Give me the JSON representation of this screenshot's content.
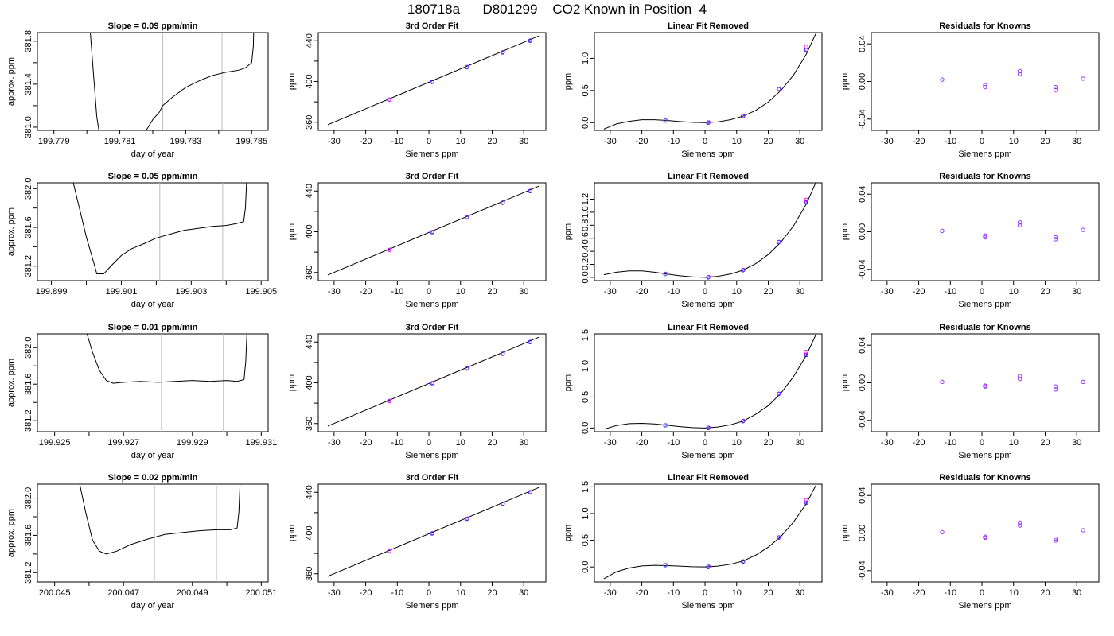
{
  "title_parts": [
    "180718a",
    "D801299",
    "CO2 Known in Position  4"
  ],
  "colors": {
    "curve": "#000000",
    "marker_blue": "#1a1aff",
    "marker_purple": "#9b30ff",
    "marker_magenta": "#ff00ff",
    "marker_cyan": "#1e90ff",
    "gate_lines": "#bebebe"
  },
  "chart_data": [
    {
      "type": "line",
      "panel": "drift-1",
      "title": "Slope =  0.09  ppm/min",
      "xlabel": "day of year",
      "ylabel": "approx. ppm",
      "xlim": [
        199.7785,
        199.7855
      ],
      "ylim": [
        380.97,
        381.88
      ],
      "xticks": [
        "199.779",
        "199.780",
        "199.781",
        "199.782",
        "199.783",
        "199.784",
        "199.785"
      ],
      "xtick_labels_shown": [
        "199.779",
        "199.781",
        "199.783",
        "199.785"
      ],
      "yticks": [
        381.0,
        381.2,
        381.4,
        381.6,
        381.8
      ],
      "ytick_labels_shown": [
        "381.0",
        "381.4",
        "381.8"
      ],
      "gate_lines_x": [
        199.7823,
        199.7841
      ],
      "x": [
        199.78,
        199.7801,
        199.7802,
        199.7803,
        199.7804,
        199.7818,
        199.7819,
        199.782,
        199.7822,
        199.7823,
        199.7826,
        199.783,
        199.7834,
        199.7838,
        199.7842,
        199.7846,
        199.7848,
        199.785,
        199.78505,
        199.7851
      ],
      "y": [
        382.5,
        381.9,
        381.5,
        381.1,
        380.9,
        380.97,
        381.02,
        381.07,
        381.14,
        381.2,
        381.28,
        381.37,
        381.43,
        381.48,
        381.51,
        381.53,
        381.55,
        381.6,
        381.75,
        382.4
      ]
    },
    {
      "type": "scatter",
      "panel": "fit-1",
      "title": "3rd Order Fit",
      "xlabel": "Siemens ppm",
      "ylabel": "ppm",
      "xlim": [
        -35,
        37
      ],
      "ylim": [
        352,
        448
      ],
      "xticks": [
        -30,
        -20,
        -10,
        0,
        10,
        20,
        30
      ],
      "yticks": [
        360,
        380,
        400,
        420,
        440
      ],
      "ytick_labels_shown": [
        "360",
        "400",
        "440"
      ],
      "line": {
        "x": [
          -32,
          35
        ],
        "y": [
          357.5,
          445
        ]
      },
      "points_x": [
        -12.6,
        1.0,
        12.0,
        23.3,
        32.0
      ],
      "points_y": [
        382.0,
        399.6,
        414.0,
        428.5,
        440.0
      ]
    },
    {
      "type": "scatter",
      "panel": "linear-removed-1",
      "title": "Linear Fit Removed",
      "xlabel": "Siemens ppm",
      "ylabel": "ppm",
      "xlim": [
        -35,
        37
      ],
      "ylim": [
        -0.12,
        1.4
      ],
      "xticks": [
        -30,
        -20,
        -10,
        0,
        10,
        20,
        30
      ],
      "yticks": [
        0.0,
        0.5,
        1.0
      ],
      "curve": {
        "x": [
          -32,
          -28,
          -24,
          -20,
          -16,
          -12,
          -8,
          -4,
          0,
          4,
          8,
          12,
          16,
          20,
          24,
          28,
          32,
          35
        ],
        "y": [
          -0.1,
          -0.02,
          0.02,
          0.045,
          0.045,
          0.035,
          0.018,
          0.005,
          0.0,
          0.012,
          0.045,
          0.1,
          0.19,
          0.32,
          0.5,
          0.74,
          1.06,
          1.38
        ]
      },
      "points_x": [
        -12.6,
        1.0,
        12.0,
        23.3,
        32.0
      ],
      "points_y": [
        0.03,
        0.0,
        0.1,
        0.52,
        1.13
      ],
      "extra_points_x": [
        32.0
      ],
      "extra_points_y": [
        1.18
      ]
    },
    {
      "type": "scatter",
      "panel": "residuals-1",
      "title": "Residuals for Knowns",
      "xlabel": "Siemens ppm",
      "ylabel": "ppm",
      "xlim": [
        -35,
        37
      ],
      "ylim": [
        -0.052,
        0.052
      ],
      "xticks": [
        -30,
        -20,
        -10,
        0,
        10,
        20,
        30
      ],
      "yticks": [
        -0.04,
        0.0,
        0.04
      ],
      "points_x": [
        -12.6,
        1.0,
        1.0,
        12.0,
        12.0,
        23.3,
        23.3,
        32.0
      ],
      "points_y": [
        0.002,
        -0.004,
        -0.006,
        0.011,
        0.008,
        -0.006,
        -0.009,
        0.003
      ]
    },
    {
      "type": "line",
      "panel": "drift-2",
      "title": "Slope =  0.05  ppm/min",
      "xlabel": "day of year",
      "ylabel": "approx. ppm",
      "xlim": [
        199.8986,
        199.9052
      ],
      "ylim": [
        381.05,
        382.06
      ],
      "xticks": [
        "199.899",
        "199.900",
        "199.901",
        "199.902",
        "199.903",
        "199.904",
        "199.905"
      ],
      "xtick_labels_shown": [
        "199.899",
        "199.901",
        "199.903",
        "199.905"
      ],
      "yticks": [
        381.2,
        381.4,
        381.6,
        381.8,
        382.0
      ],
      "ytick_labels_shown": [
        "381.2",
        "381.6",
        "382.0"
      ],
      "gate_lines_x": [
        199.9021,
        199.9039
      ],
      "x": [
        199.8996,
        199.8998,
        199.9,
        199.9002,
        199.9003,
        199.9005,
        199.9007,
        199.901,
        199.9013,
        199.9017,
        199.902,
        199.9024,
        199.9028,
        199.9032,
        199.9036,
        199.904,
        199.9043,
        199.9045,
        199.90455,
        199.9046
      ],
      "y": [
        382.1,
        381.8,
        381.5,
        381.25,
        381.12,
        381.12,
        381.2,
        381.31,
        381.38,
        381.44,
        381.49,
        381.53,
        381.57,
        381.59,
        381.61,
        381.62,
        381.64,
        381.66,
        381.8,
        382.2
      ]
    },
    {
      "type": "scatter",
      "panel": "fit-2",
      "title": "3rd Order Fit",
      "xlabel": "Siemens ppm",
      "ylabel": "ppm",
      "xlim": [
        -35,
        37
      ],
      "ylim": [
        352,
        448
      ],
      "xticks": [
        -30,
        -20,
        -10,
        0,
        10,
        20,
        30
      ],
      "yticks": [
        360,
        380,
        400,
        420,
        440
      ],
      "ytick_labels_shown": [
        "360",
        "400",
        "440"
      ],
      "line": {
        "x": [
          -32,
          35
        ],
        "y": [
          357.5,
          445
        ]
      },
      "points_x": [
        -12.6,
        1.0,
        12.0,
        23.3,
        32.0
      ],
      "points_y": [
        382.0,
        399.6,
        414.0,
        428.5,
        440.0
      ]
    },
    {
      "type": "scatter",
      "panel": "linear-removed-2",
      "title": "Linear Fit Removed",
      "xlabel": "Siemens ppm",
      "ylabel": "ppm",
      "xlim": [
        -35,
        37
      ],
      "ylim": [
        -0.05,
        1.45
      ],
      "xticks": [
        -30,
        -20,
        -10,
        0,
        10,
        20,
        30
      ],
      "yticks": [
        0.0,
        0.2,
        0.4,
        0.6,
        0.8,
        1.0,
        1.2
      ],
      "curve": {
        "x": [
          -32,
          -28,
          -24,
          -20,
          -16,
          -12,
          -8,
          -4,
          0,
          4,
          8,
          12,
          16,
          20,
          24,
          28,
          32,
          35
        ],
        "y": [
          0.04,
          0.08,
          0.1,
          0.1,
          0.08,
          0.05,
          0.025,
          0.008,
          0.0,
          0.015,
          0.05,
          0.11,
          0.21,
          0.35,
          0.54,
          0.79,
          1.12,
          1.45
        ]
      },
      "points_x": [
        -12.6,
        1.0,
        12.0,
        23.3,
        32.0
      ],
      "points_y": [
        0.05,
        0.0,
        0.11,
        0.54,
        1.15
      ],
      "extra_points_x": [
        32.0
      ],
      "extra_points_y": [
        1.19
      ]
    },
    {
      "type": "scatter",
      "panel": "residuals-2",
      "title": "Residuals for Knowns",
      "xlabel": "Siemens ppm",
      "ylabel": "ppm",
      "xlim": [
        -35,
        37
      ],
      "ylim": [
        -0.052,
        0.052
      ],
      "xticks": [
        -30,
        -20,
        -10,
        0,
        10,
        20,
        30
      ],
      "yticks": [
        -0.04,
        0.0,
        0.04
      ],
      "points_x": [
        -12.6,
        1.0,
        1.0,
        12.0,
        12.0,
        23.3,
        23.3,
        32.0
      ],
      "points_y": [
        0.001,
        -0.004,
        -0.006,
        0.01,
        0.007,
        -0.006,
        -0.008,
        0.002
      ]
    },
    {
      "type": "line",
      "panel": "drift-3",
      "title": "Slope =  0.01  ppm/min",
      "xlabel": "day of year",
      "ylabel": "approx. ppm",
      "xlim": [
        199.9245,
        199.9312
      ],
      "ylim": [
        381.08,
        382.15
      ],
      "xticks": [
        "199.925",
        "199.926",
        "199.927",
        "199.928",
        "199.929",
        "199.930",
        "199.931"
      ],
      "xtick_labels_shown": [
        "199.925",
        "199.927",
        "199.929",
        "199.931"
      ],
      "yticks": [
        381.2,
        381.4,
        381.6,
        381.8,
        382.0
      ],
      "ytick_labels_shown": [
        "381.2",
        "381.6",
        "382.0"
      ],
      "gate_lines_x": [
        199.9281,
        199.9299
      ],
      "x": [
        199.9259,
        199.9261,
        199.9263,
        199.9265,
        199.9267,
        199.927,
        199.9275,
        199.928,
        199.9285,
        199.929,
        199.9295,
        199.93,
        199.9303,
        199.9305,
        199.93055,
        199.9306
      ],
      "y": [
        382.2,
        381.95,
        381.75,
        381.64,
        381.61,
        381.62,
        381.63,
        381.62,
        381.63,
        381.64,
        381.63,
        381.64,
        381.63,
        381.65,
        381.85,
        382.3
      ]
    },
    {
      "type": "scatter",
      "panel": "fit-3",
      "title": "3rd Order Fit",
      "xlabel": "Siemens ppm",
      "ylabel": "ppm",
      "xlim": [
        -35,
        37
      ],
      "ylim": [
        352,
        448
      ],
      "xticks": [
        -30,
        -20,
        -10,
        0,
        10,
        20,
        30
      ],
      "yticks": [
        360,
        380,
        400,
        420,
        440
      ],
      "ytick_labels_shown": [
        "360",
        "400",
        "440"
      ],
      "line": {
        "x": [
          -32,
          35
        ],
        "y": [
          357.5,
          445
        ]
      },
      "points_x": [
        -12.6,
        1.0,
        12.0,
        23.3,
        32.0
      ],
      "points_y": [
        382.0,
        399.6,
        414.0,
        428.5,
        440.0
      ]
    },
    {
      "type": "scatter",
      "panel": "linear-removed-3",
      "title": "Linear Fit Removed",
      "xlabel": "Siemens ppm",
      "ylabel": "ppm",
      "xlim": [
        -35,
        37
      ],
      "ylim": [
        -0.06,
        1.52
      ],
      "xticks": [
        -30,
        -20,
        -10,
        0,
        10,
        20,
        30
      ],
      "yticks": [
        0.0,
        0.5,
        1.0,
        1.5
      ],
      "curve": {
        "x": [
          -32,
          -28,
          -24,
          -20,
          -16,
          -12,
          -8,
          -4,
          0,
          4,
          8,
          12,
          16,
          20,
          24,
          28,
          32,
          35
        ],
        "y": [
          -0.02,
          0.04,
          0.07,
          0.075,
          0.065,
          0.045,
          0.022,
          0.006,
          0.0,
          0.015,
          0.05,
          0.11,
          0.22,
          0.36,
          0.56,
          0.83,
          1.17,
          1.5
        ]
      },
      "points_x": [
        -12.6,
        1.0,
        12.0,
        23.3,
        32.0
      ],
      "points_y": [
        0.04,
        0.0,
        0.11,
        0.55,
        1.18
      ],
      "extra_points_x": [
        32.0
      ],
      "extra_points_y": [
        1.23
      ]
    },
    {
      "type": "scatter",
      "panel": "residuals-3",
      "title": "Residuals for Knowns",
      "xlabel": "Siemens ppm",
      "ylabel": "ppm",
      "xlim": [
        -35,
        37
      ],
      "ylim": [
        -0.052,
        0.052
      ],
      "xticks": [
        -30,
        -20,
        -10,
        0,
        10,
        20,
        30
      ],
      "yticks": [
        -0.04,
        0.0,
        0.04
      ],
      "points_x": [
        -12.6,
        1.0,
        1.0,
        12.0,
        12.0,
        23.3,
        23.3,
        32.0
      ],
      "points_y": [
        0.001,
        -0.003,
        -0.004,
        0.007,
        0.004,
        -0.004,
        -0.007,
        0.001
      ]
    },
    {
      "type": "line",
      "panel": "drift-4",
      "title": "Slope =  0.02  ppm/min",
      "xlabel": "day of year",
      "ylabel": "approx. ppm",
      "xlim": [
        200.0445,
        200.0512
      ],
      "ylim": [
        381.1,
        382.15
      ],
      "xticks": [
        "200.045",
        "200.046",
        "200.047",
        "200.048",
        "200.049",
        "200.050",
        "200.051"
      ],
      "xtick_labels_shown": [
        "200.045",
        "200.047",
        "200.049",
        "200.051"
      ],
      "yticks": [
        381.2,
        381.4,
        381.6,
        381.8,
        382.0
      ],
      "ytick_labels_shown": [
        "381.2",
        "381.6",
        "382.0"
      ],
      "gate_lines_x": [
        200.0479,
        200.0497
      ],
      "x": [
        200.0457,
        200.0459,
        200.0461,
        200.0463,
        200.0465,
        200.0468,
        200.0472,
        200.0477,
        200.0482,
        200.0487,
        200.0492,
        200.0497,
        200.0501,
        200.0503,
        200.05035,
        200.0504
      ],
      "y": [
        382.2,
        381.85,
        381.55,
        381.43,
        381.4,
        381.43,
        381.5,
        381.56,
        381.61,
        381.63,
        381.65,
        381.66,
        381.66,
        381.68,
        381.85,
        382.3
      ]
    },
    {
      "type": "scatter",
      "panel": "fit-4",
      "title": "3rd Order Fit",
      "xlabel": "Siemens ppm",
      "ylabel": "ppm",
      "xlim": [
        -35,
        37
      ],
      "ylim": [
        352,
        448
      ],
      "xticks": [
        -30,
        -20,
        -10,
        0,
        10,
        20,
        30
      ],
      "yticks": [
        360,
        380,
        400,
        420,
        440
      ],
      "ytick_labels_shown": [
        "360",
        "400",
        "440"
      ],
      "line": {
        "x": [
          -32,
          35
        ],
        "y": [
          357.5,
          445
        ]
      },
      "points_x": [
        -12.6,
        1.0,
        12.0,
        23.3,
        32.0
      ],
      "points_y": [
        382.0,
        399.6,
        414.0,
        428.5,
        440.0
      ]
    },
    {
      "type": "scatter",
      "panel": "linear-removed-4",
      "title": "Linear Fit Removed",
      "xlabel": "Siemens ppm",
      "ylabel": "ppm",
      "xlim": [
        -35,
        37
      ],
      "ylim": [
        -0.28,
        1.55
      ],
      "xticks": [
        -30,
        -20,
        -10,
        0,
        10,
        20,
        30
      ],
      "yticks": [
        0.0,
        0.5,
        1.0,
        1.5
      ],
      "curve": {
        "x": [
          -32,
          -28,
          -24,
          -20,
          -16,
          -12,
          -8,
          -4,
          0,
          4,
          8,
          12,
          16,
          20,
          24,
          28,
          32,
          35
        ],
        "y": [
          -0.22,
          -0.09,
          -0.02,
          0.02,
          0.03,
          0.025,
          0.015,
          0.004,
          0.0,
          0.015,
          0.05,
          0.11,
          0.22,
          0.37,
          0.57,
          0.84,
          1.18,
          1.52
        ]
      },
      "points_x": [
        -12.6,
        1.0,
        12.0,
        23.3,
        32.0
      ],
      "points_y": [
        0.03,
        0.0,
        0.1,
        0.55,
        1.2
      ],
      "extra_points_x": [
        32.0
      ],
      "extra_points_y": [
        1.25
      ]
    },
    {
      "type": "scatter",
      "panel": "residuals-4",
      "title": "Residuals for Knowns",
      "xlabel": "Siemens ppm",
      "ylabel": "ppm",
      "xlim": [
        -35,
        37
      ],
      "ylim": [
        -0.052,
        0.052
      ],
      "xticks": [
        -30,
        -20,
        -10,
        0,
        10,
        20,
        30
      ],
      "yticks": [
        -0.04,
        0.0,
        0.04
      ],
      "points_x": [
        -12.6,
        1.0,
        1.0,
        12.0,
        12.0,
        23.3,
        23.3,
        32.0
      ],
      "points_y": [
        0.001,
        -0.004,
        -0.005,
        0.011,
        0.008,
        -0.006,
        -0.008,
        0.003
      ]
    }
  ]
}
